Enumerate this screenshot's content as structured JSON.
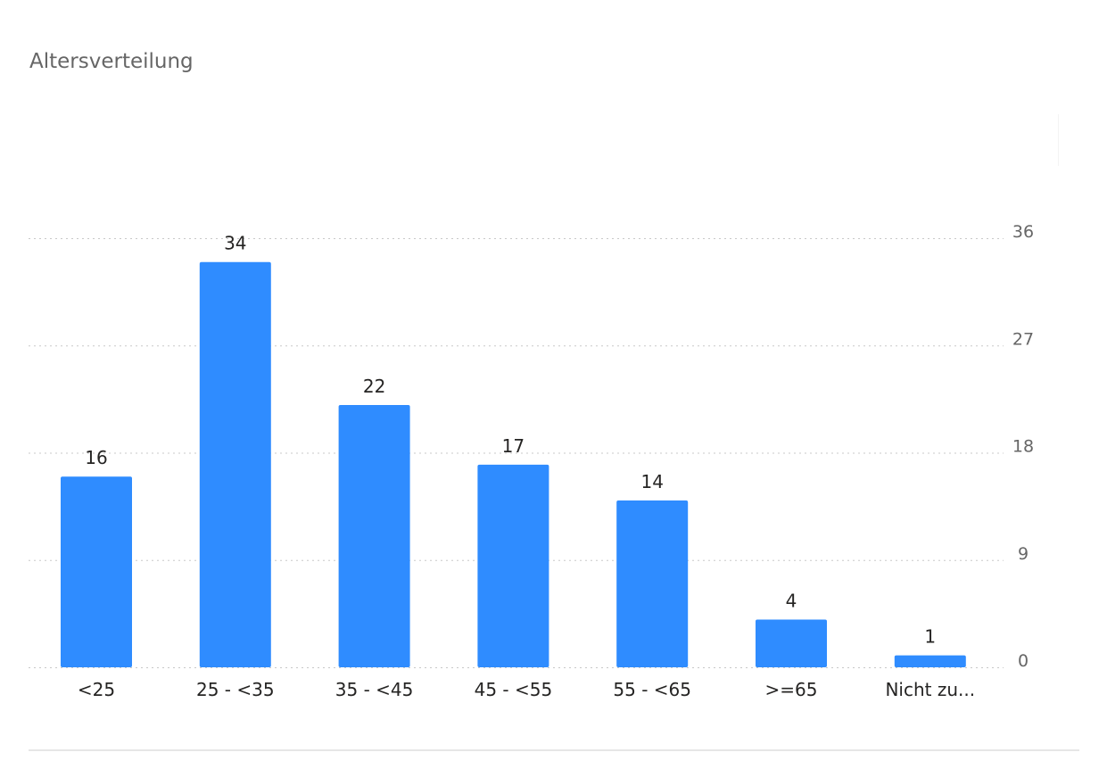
{
  "title": "Altersverteilung",
  "chart_data": {
    "type": "bar",
    "title": "Altersverteilung",
    "categories": [
      "<25",
      "25 - <35",
      "35 - <45",
      "45 - <55",
      "55 - <65",
      ">=65",
      "Nicht zu..."
    ],
    "values": [
      16,
      34,
      22,
      17,
      14,
      4,
      1
    ],
    "data_labels": [
      "16",
      "34",
      "22",
      "17",
      "14",
      "4",
      "1"
    ],
    "y_ticks": [
      0,
      9,
      18,
      27,
      36
    ],
    "y_tick_labels": [
      "0",
      "9",
      "18",
      "27",
      "36"
    ],
    "ylim": [
      0,
      36
    ],
    "y_axis_side": "right",
    "grid": "horizontal dotted",
    "bar_color": "#2f8cff",
    "grid_color": "#c8c8c8",
    "tick_color": "#666666",
    "label_color": "#252423"
  }
}
